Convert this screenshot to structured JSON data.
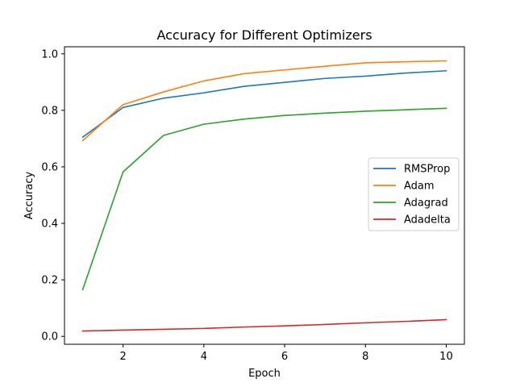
{
  "chart_data": {
    "type": "line",
    "title": "Accuracy for Different Optimizers",
    "xlabel": "Epoch",
    "ylabel": "Accuracy",
    "x": [
      1,
      2,
      3,
      4,
      5,
      6,
      7,
      8,
      9,
      10
    ],
    "xlim": [
      0.55,
      10.45
    ],
    "ylim": [
      -0.028,
      1.025
    ],
    "xticks": [
      2,
      4,
      6,
      8,
      10
    ],
    "yticks": [
      0.0,
      0.2,
      0.4,
      0.6,
      0.8,
      1.0
    ],
    "xtick_labels": [
      "2",
      "4",
      "6",
      "8",
      "10"
    ],
    "ytick_labels": [
      "0.0",
      "0.2",
      "0.4",
      "0.6",
      "0.8",
      "1.0"
    ],
    "grid": false,
    "legend_position": "center-right",
    "series": [
      {
        "name": "RMSProp",
        "color": "#1f77b4",
        "values": [
          0.705,
          0.81,
          0.843,
          0.862,
          0.885,
          0.899,
          0.913,
          0.921,
          0.932,
          0.94
        ]
      },
      {
        "name": "Adam",
        "color": "#ff7f0e",
        "values": [
          0.693,
          0.82,
          0.865,
          0.904,
          0.93,
          0.943,
          0.956,
          0.968,
          0.972,
          0.975
        ]
      },
      {
        "name": "Adagrad",
        "color": "#2ca02c",
        "values": [
          0.165,
          0.582,
          0.711,
          0.751,
          0.769,
          0.782,
          0.79,
          0.797,
          0.802,
          0.807
        ]
      },
      {
        "name": "Adadelta",
        "color": "#d62728",
        "values": [
          0.019,
          0.022,
          0.025,
          0.028,
          0.033,
          0.037,
          0.042,
          0.048,
          0.053,
          0.059
        ]
      }
    ]
  }
}
